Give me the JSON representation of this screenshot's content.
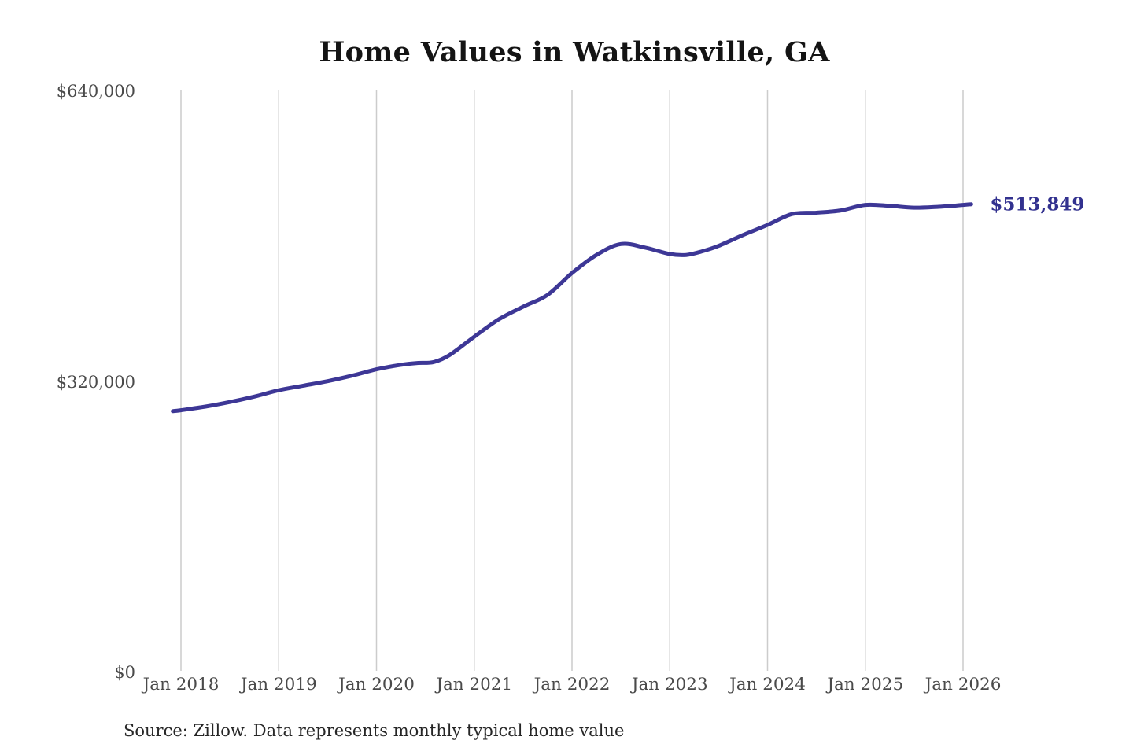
{
  "chart_data": {
    "type": "line",
    "title": "Home Values in Watkinsville, GA",
    "source_note": "Source: Zillow. Data represents monthly typical home value",
    "end_label": "$513,849",
    "ylim": [
      0,
      640000
    ],
    "grid": "vertical-only",
    "legend": "none",
    "line_color": "#3d3796",
    "end_label_color": "#32318f",
    "axis_text_color": "#4a4a4a",
    "grid_color": "#cccccc",
    "y_ticks": [
      {
        "label": "$0",
        "value": 0
      },
      {
        "label": "$320,000",
        "value": 320000
      },
      {
        "label": "$640,000",
        "value": 640000
      }
    ],
    "x_ticks": [
      {
        "label": "Jan 2018",
        "date": "2018-01"
      },
      {
        "label": "Jan 2019",
        "date": "2019-01"
      },
      {
        "label": "Jan 2020",
        "date": "2020-01"
      },
      {
        "label": "Jan 2021",
        "date": "2021-01"
      },
      {
        "label": "Jan 2022",
        "date": "2022-01"
      },
      {
        "label": "Jan 2023",
        "date": "2023-01"
      },
      {
        "label": "Jan 2024",
        "date": "2024-01"
      },
      {
        "label": "Jan 2025",
        "date": "2025-01"
      },
      {
        "label": "Jan 2026",
        "date": "2026-01"
      }
    ],
    "series": [
      {
        "points": [
          [
            "2017-12",
            286000
          ],
          [
            "2018-01",
            287000
          ],
          [
            "2018-04",
            291000
          ],
          [
            "2018-07",
            296000
          ],
          [
            "2018-10",
            302000
          ],
          [
            "2019-01",
            309000
          ],
          [
            "2019-04",
            314000
          ],
          [
            "2019-07",
            319000
          ],
          [
            "2019-10",
            325000
          ],
          [
            "2020-01",
            332000
          ],
          [
            "2020-04",
            337000
          ],
          [
            "2020-06",
            339000
          ],
          [
            "2020-08",
            340000
          ],
          [
            "2020-10",
            348000
          ],
          [
            "2021-01",
            368000
          ],
          [
            "2021-04",
            387000
          ],
          [
            "2021-07",
            401000
          ],
          [
            "2021-10",
            414000
          ],
          [
            "2022-01",
            438000
          ],
          [
            "2022-04",
            458000
          ],
          [
            "2022-07",
            470000
          ],
          [
            "2022-10",
            466000
          ],
          [
            "2023-01",
            459000
          ],
          [
            "2023-03",
            458000
          ],
          [
            "2023-05",
            462000
          ],
          [
            "2023-07",
            468000
          ],
          [
            "2023-10",
            480000
          ],
          [
            "2024-01",
            491000
          ],
          [
            "2024-04",
            503000
          ],
          [
            "2024-07",
            504500
          ],
          [
            "2024-10",
            507000
          ],
          [
            "2025-01",
            513000
          ],
          [
            "2025-04",
            512000
          ],
          [
            "2025-07",
            510000
          ],
          [
            "2025-10",
            511000
          ],
          [
            "2026-01",
            513000
          ],
          [
            "2026-02",
            513849
          ]
        ]
      }
    ]
  }
}
